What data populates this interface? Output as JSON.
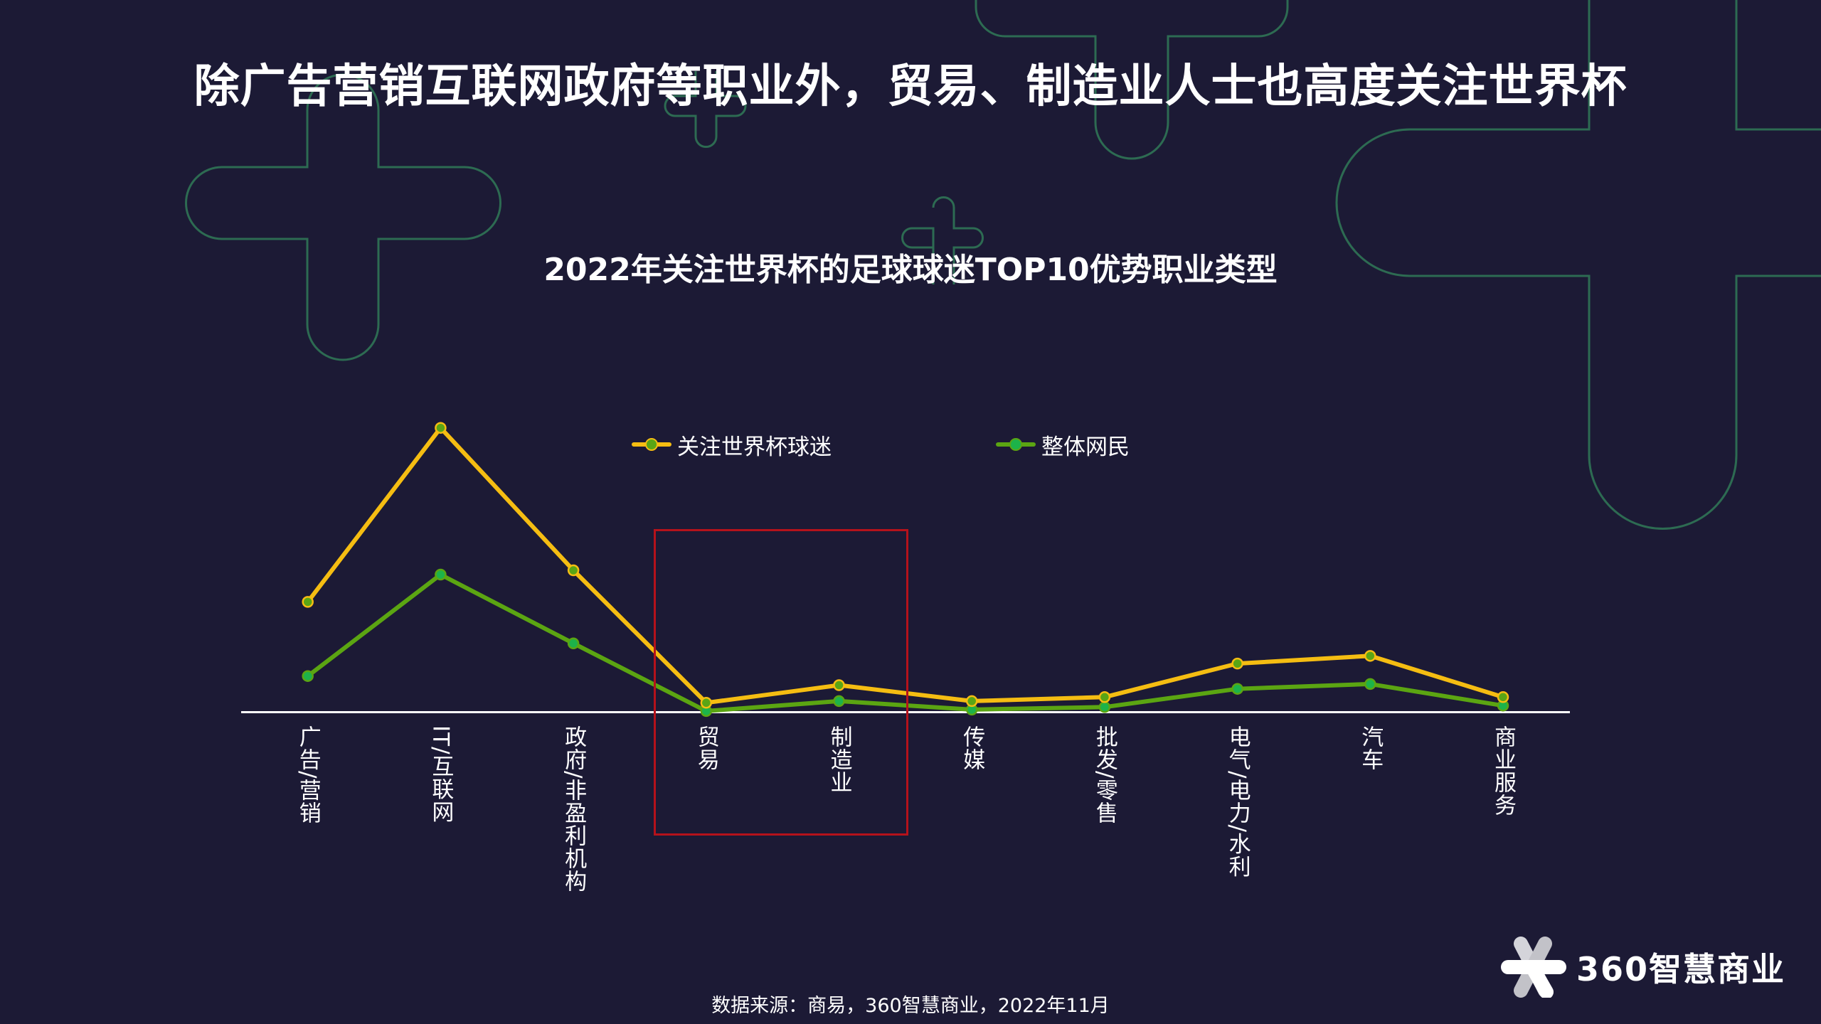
{
  "title": "除广告营销互联网政府等职业外，贸易、制造业人士也高度关注世界杯",
  "subtitle": "2022年关注世界杯的足球球迷TOP10优势职业类型",
  "legend": [
    {
      "label": "关注世界杯球迷",
      "color": "#f5bd12",
      "marker": "#5aa515"
    },
    {
      "label": "整体网民",
      "color": "#5ba512",
      "marker": "#1db34a"
    }
  ],
  "highlight": {
    "categories": [
      "贸易",
      "制造业"
    ],
    "color": "#b5121b"
  },
  "source": "数据来源：商易，360智慧商业，2022年11月",
  "logo": {
    "text": "360智慧商业",
    "icon": "360-logo-icon"
  },
  "colors": {
    "background": "#1c1a35",
    "deco_outline": "#2d6b52",
    "axis": "#ffffff"
  },
  "chart_data": {
    "type": "line",
    "title": "2022年关注世界杯的足球球迷TOP10优势职业类型",
    "xlabel": "",
    "ylabel": "",
    "categories": [
      "广告/营销",
      "IT/互联网",
      "政府/非盈利机构",
      "贸易",
      "制造业",
      "传媒",
      "批发/零售",
      "电气/电力/水利",
      "汽车",
      "商业服务"
    ],
    "series": [
      {
        "name": "关注世界杯球迷",
        "values": [
          38.8,
          100,
          49.9,
          3.3,
          9.5,
          3.9,
          5.3,
          17.1,
          19.8,
          5.3
        ]
      },
      {
        "name": "整体网民",
        "values": [
          12.7,
          48.4,
          24.2,
          0.4,
          3.9,
          0.9,
          1.8,
          8.2,
          9.9,
          2.3
        ]
      }
    ],
    "ylim": [
      0,
      100
    ],
    "y_axis_visible": false,
    "grid": false,
    "legend_position": "top",
    "annotations": [
      "red box highlighting 贸易 and 制造业"
    ]
  }
}
